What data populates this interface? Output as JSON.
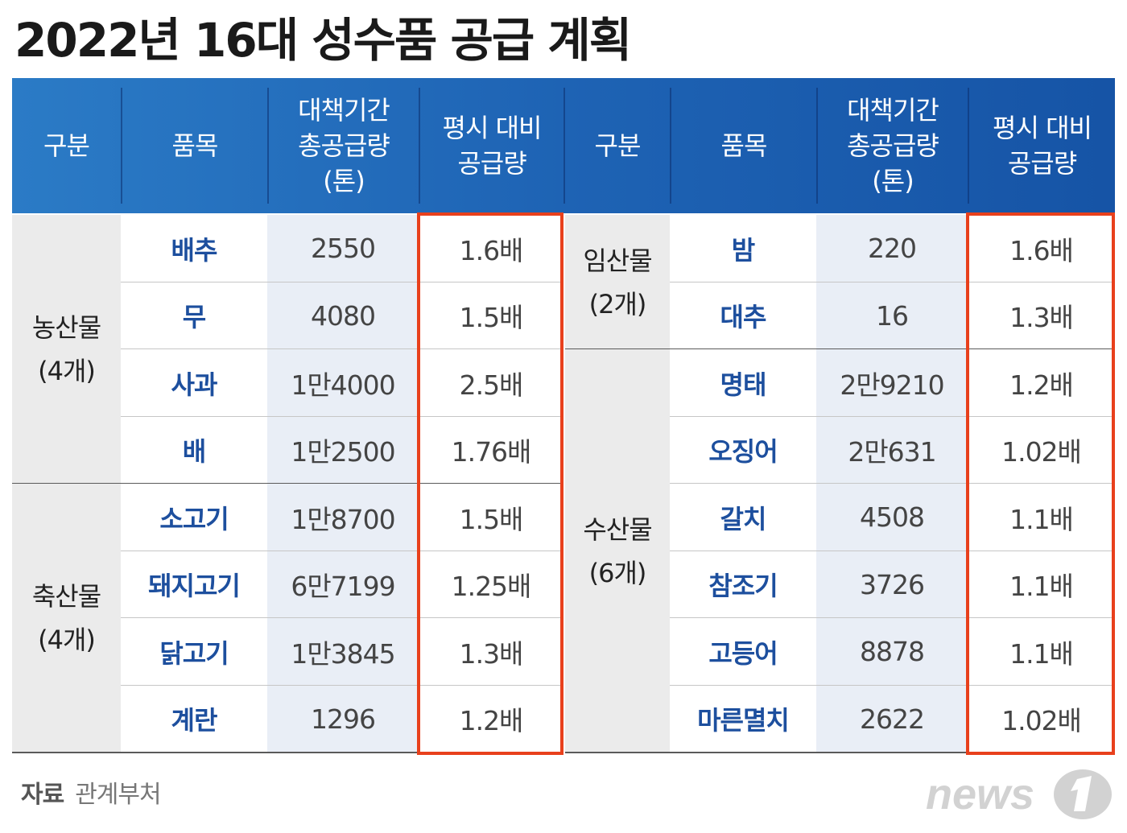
{
  "title": "2022년 16대 성수품 공급 계획",
  "headers": {
    "left": [
      "구분",
      "품목",
      "대책기간\n총공급량\n(톤)",
      "평시 대비\n공급량"
    ],
    "right": [
      "구분",
      "품목",
      "대책기간\n총공급량\n(톤)",
      "평시 대비\n공급량"
    ]
  },
  "left_groups": [
    {
      "category": "농산물\n(4개)",
      "rows": [
        {
          "item": "배추",
          "total": "2550",
          "ratio": "1.6배"
        },
        {
          "item": "무",
          "total": "4080",
          "ratio": "1.5배"
        },
        {
          "item": "사과",
          "total": "1만4000",
          "ratio": "2.5배"
        },
        {
          "item": "배",
          "total": "1만2500",
          "ratio": "1.76배"
        }
      ]
    },
    {
      "category": "축산물\n(4개)",
      "rows": [
        {
          "item": "소고기",
          "total": "1만8700",
          "ratio": "1.5배"
        },
        {
          "item": "돼지고기",
          "total": "6만7199",
          "ratio": "1.25배"
        },
        {
          "item": "닭고기",
          "total": "1만3845",
          "ratio": "1.3배"
        },
        {
          "item": "계란",
          "total": "1296",
          "ratio": "1.2배"
        }
      ]
    }
  ],
  "right_groups": [
    {
      "category": "임산물\n(2개)",
      "rows": [
        {
          "item": "밤",
          "total": "220",
          "ratio": "1.6배"
        },
        {
          "item": "대추",
          "total": "16",
          "ratio": "1.3배"
        }
      ]
    },
    {
      "category": "수산물\n(6개)",
      "rows": [
        {
          "item": "명태",
          "total": "2만9210",
          "ratio": "1.2배"
        },
        {
          "item": "오징어",
          "total": "2만631",
          "ratio": "1.02배"
        },
        {
          "item": "갈치",
          "total": "4508",
          "ratio": "1.1배"
        },
        {
          "item": "참조기",
          "total": "3726",
          "ratio": "1.1배"
        },
        {
          "item": "고등어",
          "total": "8878",
          "ratio": "1.1배"
        },
        {
          "item": "마른멸치",
          "total": "2622",
          "ratio": "1.02배"
        }
      ]
    }
  ],
  "source": {
    "label": "자료",
    "value": "관계부처"
  },
  "logo_text": "news1",
  "colors": {
    "header_blue": "#1e63b4",
    "item_blue": "#1d4f9e",
    "highlight_red": "#e8401c",
    "category_bg": "#ebebeb",
    "total_bg": "#e9eef6"
  }
}
